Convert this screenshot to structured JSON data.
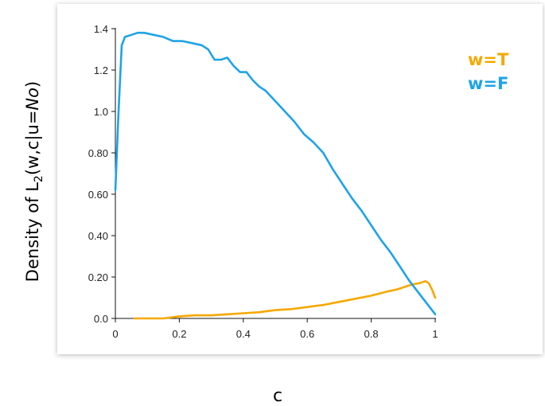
{
  "chart_data": {
    "type": "line",
    "title": "",
    "xlabel": "c",
    "ylabel_parts": {
      "prefix": "Density of L",
      "subscript": "2",
      "open": "(w,c|u=",
      "italic": "No",
      "close": ")"
    },
    "xlim": [
      0,
      1
    ],
    "ylim": [
      0,
      1.4
    ],
    "x_ticks": [
      0,
      0.2,
      0.4,
      0.6,
      0.8,
      1
    ],
    "x_tick_labels": [
      "0",
      "0.2",
      "0.4",
      "0.6",
      "0.8",
      "1"
    ],
    "y_ticks": [
      0,
      0.2,
      0.4,
      0.6,
      0.8,
      1.0,
      1.2,
      1.4
    ],
    "y_tick_labels": [
      "0.0",
      "0.20",
      "0.40",
      "0.60",
      "0.80",
      "1.0",
      "1.2",
      "1.4"
    ],
    "grid": false,
    "legend_position": "top-right",
    "series": [
      {
        "name": "w=T",
        "color": "#f5a800",
        "x": [
          0.06,
          0.15,
          0.2,
          0.25,
          0.3,
          0.35,
          0.4,
          0.45,
          0.5,
          0.55,
          0.6,
          0.65,
          0.7,
          0.75,
          0.8,
          0.85,
          0.88,
          0.9,
          0.93,
          0.95,
          0.97,
          0.98,
          0.99,
          1.0
        ],
        "y": [
          0.0,
          0.0,
          0.01,
          0.015,
          0.015,
          0.02,
          0.025,
          0.03,
          0.04,
          0.045,
          0.055,
          0.065,
          0.08,
          0.095,
          0.11,
          0.13,
          0.14,
          0.15,
          0.165,
          0.17,
          0.18,
          0.17,
          0.14,
          0.1
        ]
      },
      {
        "name": "w=F",
        "color": "#1fa3e6",
        "x": [
          0.0,
          0.01,
          0.02,
          0.03,
          0.05,
          0.07,
          0.09,
          0.12,
          0.15,
          0.18,
          0.21,
          0.24,
          0.27,
          0.29,
          0.31,
          0.33,
          0.35,
          0.37,
          0.39,
          0.41,
          0.43,
          0.45,
          0.47,
          0.5,
          0.53,
          0.56,
          0.59,
          0.62,
          0.65,
          0.68,
          0.71,
          0.74,
          0.77,
          0.8,
          0.83,
          0.86,
          0.89,
          0.92,
          0.95,
          0.98,
          1.0
        ],
        "y": [
          0.62,
          1.0,
          1.32,
          1.36,
          1.37,
          1.38,
          1.38,
          1.37,
          1.36,
          1.34,
          1.34,
          1.33,
          1.32,
          1.3,
          1.25,
          1.25,
          1.26,
          1.22,
          1.19,
          1.19,
          1.15,
          1.12,
          1.1,
          1.05,
          1.0,
          0.95,
          0.89,
          0.85,
          0.8,
          0.72,
          0.65,
          0.58,
          0.52,
          0.45,
          0.38,
          0.32,
          0.25,
          0.18,
          0.12,
          0.06,
          0.02
        ]
      }
    ]
  }
}
